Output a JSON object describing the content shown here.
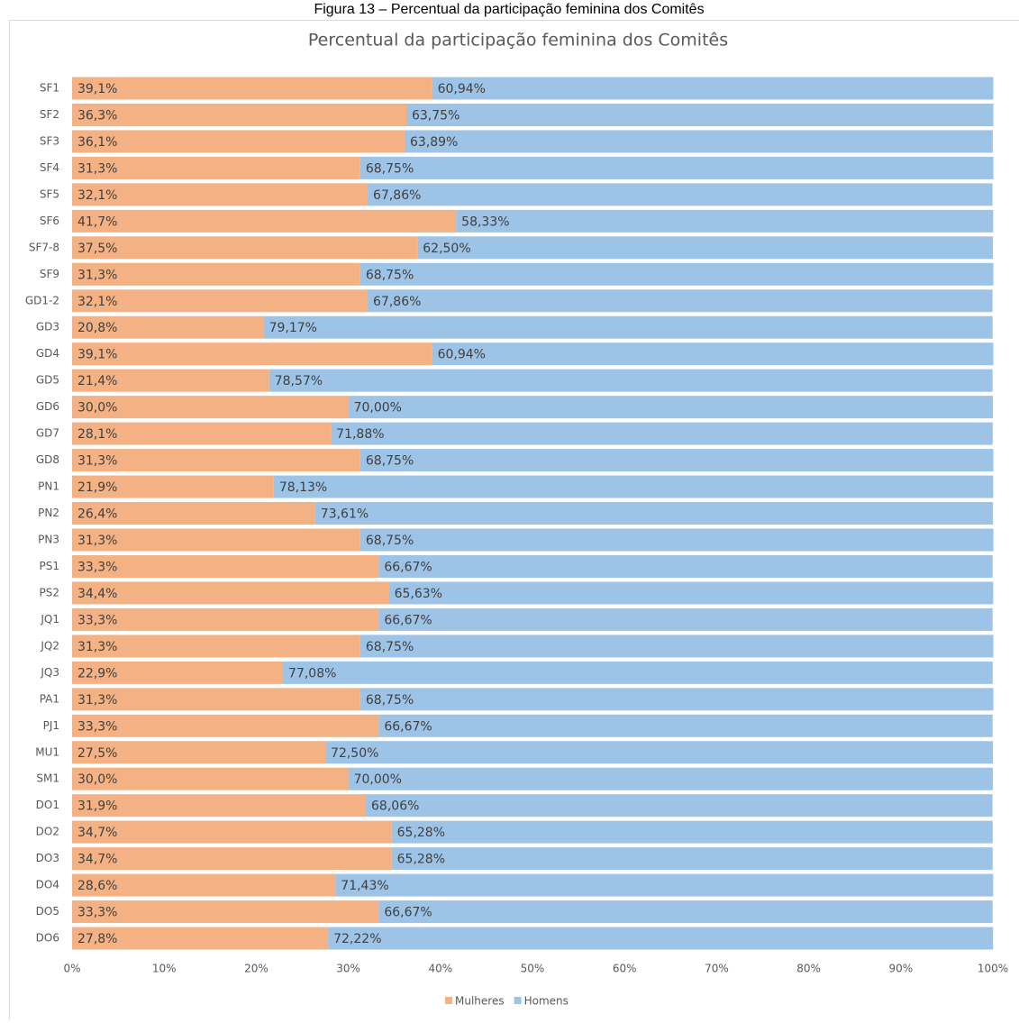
{
  "caption": "Figura 13 – Percentual da participação feminina dos Comitês",
  "chart_data": {
    "type": "stacked_barh",
    "title": "Percentual da participação feminina dos Comitês",
    "categories": [
      "SF1",
      "SF2",
      "SF3",
      "SF4",
      "SF5",
      "SF6",
      "SF7-8",
      "SF9",
      "GD1-2",
      "GD3",
      "GD4",
      "GD5",
      "GD6",
      "GD7",
      "GD8",
      "PN1",
      "PN2",
      "PN3",
      "PS1",
      "PS2",
      "JQ1",
      "JQ2",
      "JQ3",
      "PA1",
      "PJ1",
      "MU1",
      "SM1",
      "DO1",
      "DO2",
      "DO3",
      "DO4",
      "DO5",
      "DO6"
    ],
    "series": [
      {
        "name": "Mulheres",
        "color": "#f4b183",
        "values": [
          39.1,
          36.3,
          36.1,
          31.3,
          32.1,
          41.7,
          37.5,
          31.3,
          32.1,
          20.8,
          39.1,
          21.4,
          30.0,
          28.1,
          31.3,
          21.9,
          26.4,
          31.3,
          33.3,
          34.4,
          33.3,
          31.3,
          22.9,
          31.3,
          33.3,
          27.5,
          30.0,
          31.9,
          34.7,
          34.7,
          28.6,
          33.3,
          27.8
        ],
        "value_labels": [
          "39,1%",
          "36,3%",
          "36,1%",
          "31,3%",
          "32,1%",
          "41,7%",
          "37,5%",
          "31,3%",
          "32,1%",
          "20,8%",
          "39,1%",
          "21,4%",
          "30,0%",
          "28,1%",
          "31,3%",
          "21,9%",
          "26,4%",
          "31,3%",
          "33,3%",
          "34,4%",
          "33,3%",
          "31,3%",
          "22,9%",
          "31,3%",
          "33,3%",
          "27,5%",
          "30,0%",
          "31,9%",
          "34,7%",
          "34,7%",
          "28,6%",
          "33,3%",
          "27,8%"
        ]
      },
      {
        "name": "Homens",
        "color": "#9dc3e6",
        "values": [
          60.94,
          63.75,
          63.89,
          68.75,
          67.86,
          58.33,
          62.5,
          68.75,
          67.86,
          79.17,
          60.94,
          78.57,
          70.0,
          71.88,
          68.75,
          78.13,
          73.61,
          68.75,
          66.67,
          65.63,
          66.67,
          68.75,
          77.08,
          68.75,
          66.67,
          72.5,
          70.0,
          68.06,
          65.28,
          65.28,
          71.43,
          66.67,
          72.22
        ],
        "value_labels": [
          "60,94%",
          "63,75%",
          "63,89%",
          "68,75%",
          "67,86%",
          "58,33%",
          "62,50%",
          "68,75%",
          "67,86%",
          "79,17%",
          "60,94%",
          "78,57%",
          "70,00%",
          "71,88%",
          "68,75%",
          "78,13%",
          "73,61%",
          "68,75%",
          "66,67%",
          "65,63%",
          "66,67%",
          "68,75%",
          "77,08%",
          "68,75%",
          "66,67%",
          "72,50%",
          "70,00%",
          "68,06%",
          "65,28%",
          "65,28%",
          "71,43%",
          "66,67%",
          "72,22%"
        ]
      }
    ],
    "xlim": [
      0,
      100
    ],
    "xticks": [
      {
        "value": 0,
        "label": "0%"
      },
      {
        "value": 10,
        "label": "10%"
      },
      {
        "value": 20,
        "label": "20%"
      },
      {
        "value": 30,
        "label": "30%"
      },
      {
        "value": 40,
        "label": "40%"
      },
      {
        "value": 50,
        "label": "50%"
      },
      {
        "value": 60,
        "label": "60%"
      },
      {
        "value": 70,
        "label": "70%"
      },
      {
        "value": 80,
        "label": "80%"
      },
      {
        "value": 90,
        "label": "90%"
      },
      {
        "value": 100,
        "label": "100%"
      }
    ],
    "legend": "bottom"
  }
}
